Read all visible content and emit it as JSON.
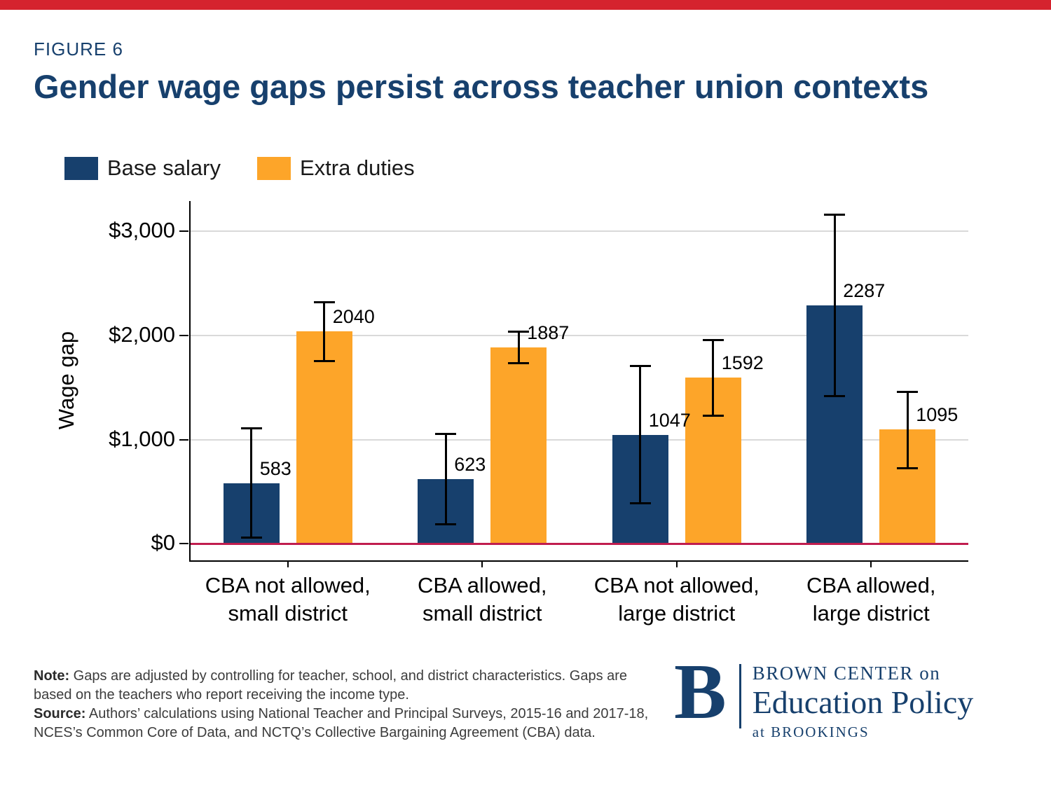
{
  "page": {
    "figure_label": "FIGURE 6",
    "title": "Gender wage gaps persist across teacher union contexts"
  },
  "colors": {
    "navy": "#17406d",
    "orange": "#fda529",
    "top_strip": "#d5232e",
    "baseline": "#c01d4e",
    "grid": "#d9d9d9"
  },
  "legend": [
    {
      "label": "Base salary",
      "color": "#17406d"
    },
    {
      "label": "Extra duties",
      "color": "#fda529"
    }
  ],
  "chart_data": {
    "type": "bar",
    "title": "Gender wage gaps persist across teacher union contexts",
    "ylabel": "Wage gap",
    "xlabel": "",
    "ylim": [
      -160,
      3290
    ],
    "grid": true,
    "legend_position": "top-left",
    "y_ticks": [
      {
        "value": 0,
        "label": "$0"
      },
      {
        "value": 1000,
        "label": "$1,000"
      },
      {
        "value": 2000,
        "label": "$2,000"
      },
      {
        "value": 3000,
        "label": "$3,000"
      }
    ],
    "categories": [
      {
        "line1": "CBA not allowed,",
        "line2": "small district"
      },
      {
        "line1": "CBA allowed,",
        "line2": "small district"
      },
      {
        "line1": "CBA not allowed,",
        "line2": "large district"
      },
      {
        "line1": "CBA allowed,",
        "line2": "large district"
      }
    ],
    "series": [
      {
        "name": "Base salary",
        "color": "#17406d",
        "values": [
          583,
          623,
          1047,
          2287
        ],
        "ci_low": [
          60,
          190,
          390,
          1420
        ],
        "ci_high": [
          1110,
          1055,
          1710,
          3160
        ]
      },
      {
        "name": "Extra duties",
        "color": "#fda529",
        "values": [
          2040,
          1887,
          1592,
          1095
        ],
        "ci_low": [
          1760,
          1735,
          1230,
          730
        ],
        "ci_high": [
          2320,
          2040,
          1960,
          1460
        ]
      }
    ],
    "baseline_value": 0,
    "baseline_color": "#c01d4e"
  },
  "footer": {
    "note_label": "Note:",
    "note_text": " Gaps are adjusted by controlling for teacher, school, and district characteristics. Gaps are based on the teachers who report receiving the income type.",
    "source_label": "Source:",
    "source_text": " Authors’ calculations using National Teacher and Principal Surveys, 2015-16 and 2017-18, NCES’s Common Core of Data, and NCTQ’s Collective Bargaining Agreement (CBA) data."
  },
  "logo": {
    "letter": "B",
    "line1": "BROWN CENTER on",
    "line2": "Education Policy",
    "line3": "at BROOKINGS"
  }
}
